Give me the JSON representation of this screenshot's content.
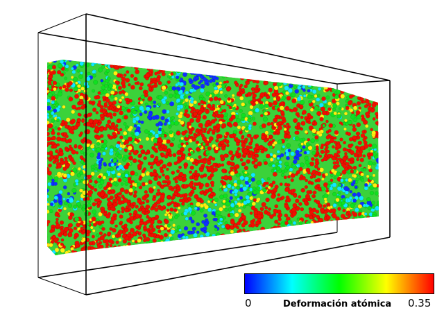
{
  "figure": {
    "subject": "Simulación atomística de una probeta (cristal) en caja de simulación",
    "colors": {
      "atom_low": "#1030ff",
      "atom_cyan": "#10e8ff",
      "atom_green": "#10e020",
      "atom_yellow": "#ffef10",
      "atom_red": "#f01000",
      "box_edges": "#000000",
      "background": "#ffffff"
    }
  },
  "colorbar": {
    "title": "Deformación atómica",
    "min_label": "0",
    "max_label": "0.35",
    "min_value": 0,
    "max_value": 0.35,
    "gradient_colors": [
      "#0000ff",
      "#00ffff",
      "#00ff00",
      "#ffff00",
      "#ff0000"
    ]
  }
}
